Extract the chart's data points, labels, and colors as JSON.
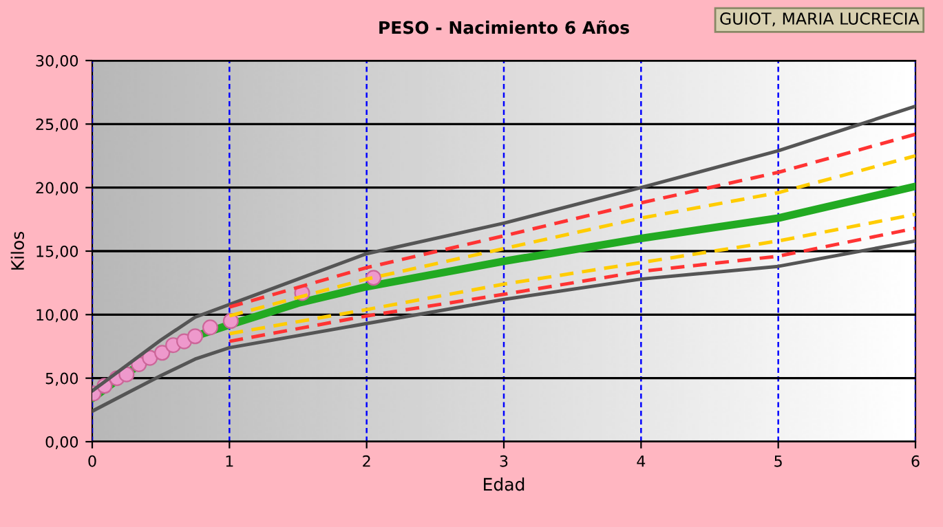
{
  "chart_data": {
    "type": "line",
    "title": "PESO - Nacimiento 6 Años",
    "xlabel": "Edad",
    "ylabel": "Kilos",
    "annotations": [
      "GUIOT, MARIA LUCRECIA"
    ],
    "xlim": [
      0,
      6
    ],
    "xticks": [
      0,
      1,
      2,
      3,
      4,
      5,
      6
    ],
    "ylim": [
      0,
      30
    ],
    "yticks": [
      {
        "value": 0,
        "label": "0,00"
      },
      {
        "value": 5,
        "label": "5,00"
      },
      {
        "value": 10,
        "label": "10,00"
      },
      {
        "value": 15,
        "label": "15,00"
      },
      {
        "value": 20,
        "label": "20,00"
      },
      {
        "value": 25,
        "label": "25,00"
      },
      {
        "value": 30,
        "label": "30,00"
      }
    ],
    "grid": true,
    "legend": false,
    "marker": "none",
    "series": [
      {
        "color": "#555555",
        "line_style": "solid",
        "x": [
          0,
          0.25,
          0.5,
          0.75,
          1,
          1.5,
          2,
          3,
          4,
          5,
          6
        ],
        "values": [
          4.0,
          6.0,
          8.0,
          9.8,
          10.8,
          12.8,
          14.8,
          17.2,
          20.0,
          22.9,
          26.4
        ]
      },
      {
        "color": "#555555",
        "line_style": "solid",
        "x": [
          0,
          0.25,
          0.5,
          0.75,
          1,
          2,
          3,
          4,
          5,
          6
        ],
        "values": [
          2.4,
          3.8,
          5.2,
          6.5,
          7.4,
          9.3,
          11.2,
          12.8,
          13.8,
          15.8
        ]
      },
      {
        "color": "#ff3333",
        "line_style": "dashed",
        "x": [
          1,
          2,
          3,
          4,
          5,
          6
        ],
        "values": [
          10.6,
          13.7,
          16.2,
          18.8,
          21.2,
          24.2
        ]
      },
      {
        "color": "#ff3333",
        "line_style": "dashed",
        "x": [
          1,
          2,
          3,
          4,
          5,
          6
        ],
        "values": [
          7.9,
          9.9,
          11.6,
          13.4,
          14.6,
          16.8
        ]
      },
      {
        "color": "#ffcc00",
        "line_style": "dashed",
        "x": [
          1,
          2,
          3,
          4,
          5,
          6
        ],
        "values": [
          9.9,
          12.8,
          15.2,
          17.6,
          19.6,
          22.5
        ]
      },
      {
        "color": "#ffcc00",
        "line_style": "dashed",
        "x": [
          1,
          2,
          3,
          4,
          5,
          6
        ],
        "values": [
          8.5,
          10.4,
          12.4,
          14.1,
          15.8,
          17.9
        ]
      },
      {
        "color": "#22aa22",
        "line_style": "solid",
        "x": [
          0,
          0.25,
          0.5,
          0.75,
          1,
          1.5,
          2,
          3,
          4,
          5,
          6
        ],
        "values": [
          3.4,
          5.4,
          7.0,
          8.3,
          9.2,
          10.9,
          12.2,
          14.2,
          16.0,
          17.6,
          20.1
        ]
      },
      {
        "type": "scatter",
        "color": "#ee99cc",
        "marker": "circle",
        "x": [
          0.01,
          0.09,
          0.18,
          0.25,
          0.34,
          0.42,
          0.51,
          0.59,
          0.67,
          0.75,
          0.86,
          1.01,
          1.53,
          2.05
        ],
        "values": [
          3.8,
          4.4,
          5.0,
          5.3,
          6.1,
          6.6,
          7.0,
          7.6,
          7.9,
          8.3,
          9.0,
          9.5,
          11.7,
          12.9
        ]
      }
    ]
  }
}
